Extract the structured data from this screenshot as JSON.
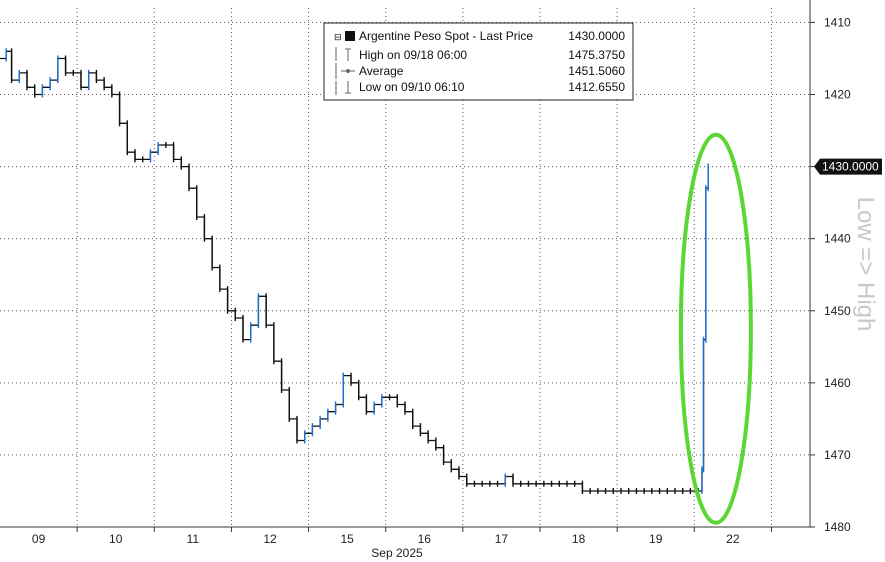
{
  "chart_data": {
    "type": "line",
    "title": "",
    "xlabel": "Sep 2025",
    "ylabel": "",
    "y_inverted": true,
    "ylim": [
      1480,
      1408
    ],
    "y_ticks": [
      1410,
      1420,
      1430,
      1440,
      1450,
      1460,
      1470,
      1480
    ],
    "x_ticks": [
      {
        "label": "09",
        "x": 0.5
      },
      {
        "label": "10",
        "x": 1.5
      },
      {
        "label": "11",
        "x": 2.5
      },
      {
        "label": "12",
        "x": 3.5
      },
      {
        "label": "15",
        "x": 4.5
      },
      {
        "label": "16",
        "x": 5.5
      },
      {
        "label": "17",
        "x": 6.5
      },
      {
        "label": "18",
        "x": 7.5
      },
      {
        "label": "19",
        "x": 8.5
      },
      {
        "label": "22",
        "x": 9.5
      }
    ],
    "xlim": [
      0,
      10.5
    ],
    "grid": true,
    "current_value_label": "1430.0000",
    "current_value": 1430.0,
    "legend": {
      "position": "top-center",
      "rows": [
        {
          "label": "Argentine Peso Spot - Last Price",
          "value": "1430.0000"
        },
        {
          "label": "High on 09/18 06:00",
          "value": "1475.3750"
        },
        {
          "label": "Average",
          "value": "1451.5060"
        },
        {
          "label": "Low on 09/10 06:10",
          "value": "1412.6550"
        }
      ]
    },
    "annotation": "Low => High",
    "highlight": {
      "shape": "ellipse",
      "color": "#5cd635",
      "x_center": 9.28,
      "y_center": 1452.5
    },
    "colors": {
      "bar": "#111111",
      "bar_up": "#1a6fd1"
    },
    "series": [
      {
        "name": "Argentine Peso Spot - Last Price",
        "x": [
          0.0,
          0.08,
          0.15,
          0.25,
          0.35,
          0.45,
          0.55,
          0.65,
          0.75,
          0.85,
          0.95,
          1.05,
          1.15,
          1.25,
          1.35,
          1.45,
          1.55,
          1.65,
          1.75,
          1.85,
          1.95,
          2.05,
          2.15,
          2.25,
          2.35,
          2.45,
          2.55,
          2.65,
          2.75,
          2.85,
          2.95,
          3.05,
          3.15,
          3.25,
          3.35,
          3.45,
          3.55,
          3.65,
          3.75,
          3.85,
          3.95,
          4.05,
          4.15,
          4.25,
          4.35,
          4.45,
          4.55,
          4.65,
          4.75,
          4.85,
          4.95,
          5.05,
          5.15,
          5.25,
          5.35,
          5.45,
          5.55,
          5.65,
          5.75,
          5.85,
          5.95,
          6.05,
          6.15,
          6.25,
          6.35,
          6.45,
          6.55,
          6.65,
          6.75,
          6.85,
          6.95,
          7.05,
          7.15,
          7.25,
          7.35,
          7.45,
          7.55,
          7.65,
          7.75,
          7.85,
          7.95,
          8.05,
          8.15,
          8.25,
          8.35,
          8.45,
          8.55,
          8.65,
          8.75,
          8.85,
          8.95,
          9.05,
          9.1,
          9.12,
          9.15,
          9.18
        ],
        "values": [
          1415,
          1414,
          1418,
          1417,
          1419,
          1420,
          1419,
          1418,
          1415,
          1417,
          1417,
          1419,
          1417,
          1418,
          1419,
          1420,
          1424,
          1428,
          1429,
          1429,
          1428,
          1427,
          1427,
          1429,
          1430,
          1433,
          1437,
          1440,
          1444,
          1447,
          1450,
          1451,
          1454,
          1452,
          1448,
          1452,
          1457,
          1461,
          1465,
          1468,
          1467,
          1466,
          1465,
          1464,
          1463,
          1459,
          1460,
          1462,
          1464,
          1463,
          1462,
          1462,
          1463,
          1464,
          1466,
          1467,
          1468,
          1469,
          1471,
          1472,
          1473,
          1474,
          1474,
          1474,
          1474,
          1474,
          1473,
          1474,
          1474,
          1474,
          1474,
          1474,
          1474,
          1474,
          1474,
          1474,
          1475,
          1475,
          1475,
          1475,
          1475,
          1475,
          1475,
          1475,
          1475,
          1475,
          1475,
          1475,
          1475,
          1475,
          1475,
          1475,
          1472,
          1454,
          1433,
          1430
        ]
      }
    ]
  }
}
